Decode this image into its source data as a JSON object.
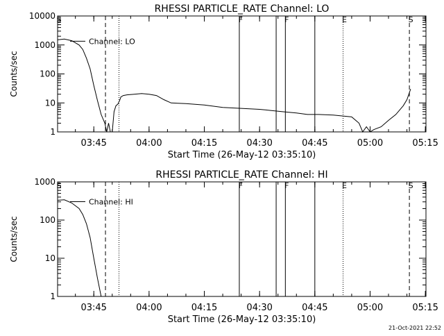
{
  "timestamp": "21-Oct-2021 22:52",
  "colors": {
    "line": "#000000",
    "background": "#ffffff"
  },
  "chart_data": [
    {
      "type": "line",
      "title": "RHESSI PARTICLE_RATE Channel: LO",
      "xlabel": "Start Time (26-May-12 03:35:10)",
      "ylabel": "Counts/sec",
      "y_scale": "log",
      "ylim": [
        1,
        10000
      ],
      "ytick_labels": [
        "1",
        "10",
        "100",
        "1000",
        "10000"
      ],
      "xlim": [
        "03:35:10",
        "05:15:10"
      ],
      "xtick_labels": [
        "03:45",
        "04:00",
        "04:15",
        "04:30",
        "04:45",
        "05:00",
        "05:15"
      ],
      "series": [
        {
          "name": "Channel: LO",
          "x": [
            "03:35:10",
            "03:37:00",
            "03:39:00",
            "03:41:00",
            "03:42:00",
            "03:43:00",
            "03:44:00",
            "03:45:00",
            "03:46:00",
            "03:47:00",
            "03:48:00",
            "03:48:30",
            "03:49:00",
            "03:49:30",
            "03:50:00",
            "03:50:30",
            "03:51:00",
            "03:51:30",
            "03:52:00",
            "03:52:20",
            "03:53:00",
            "03:54:00",
            "03:56:00",
            "03:58:00",
            "04:00:00",
            "04:02:00",
            "04:04:00",
            "04:06:00",
            "04:10:00",
            "04:15:00",
            "04:20:00",
            "04:25:00",
            "04:30:00",
            "04:33:00",
            "04:36:00",
            "04:40:00",
            "04:43:00",
            "04:46:00",
            "04:50:00",
            "04:55:00",
            "04:57:00",
            "04:58:00",
            "04:59:00",
            "05:00:00",
            "05:01:00",
            "05:03:00",
            "05:05:00",
            "05:07:00",
            "05:09:00",
            "05:10:00",
            "05:11:00"
          ],
          "values": [
            1500,
            1600,
            1400,
            1000,
            700,
            350,
            150,
            40,
            12,
            4,
            2,
            1,
            2,
            1,
            1,
            5,
            8,
            9,
            12,
            16,
            18,
            19,
            20,
            21,
            20,
            18,
            13,
            10,
            9.5,
            8.5,
            7,
            6.5,
            6,
            5.5,
            5,
            4.5,
            4,
            4,
            3.8,
            3.3,
            2,
            1,
            1.5,
            1,
            1.2,
            1.5,
            2.5,
            4,
            8,
            13,
            30
          ]
        }
      ],
      "markers": [
        {
          "label": "S",
          "time": "03:35:10",
          "style": "dashed"
        },
        {
          "label": "",
          "time": "03:48:10",
          "style": "dashed"
        },
        {
          "label": "",
          "time": "03:51:50",
          "style": "dotted"
        },
        {
          "label": "F",
          "time": "04:24:30",
          "style": "solid"
        },
        {
          "label": "",
          "time": "04:34:30",
          "style": "solid"
        },
        {
          "label": "F",
          "time": "04:37:00",
          "style": "solid"
        },
        {
          "label": "",
          "time": "04:45:00",
          "style": "solid"
        },
        {
          "label": "E",
          "time": "04:52:40",
          "style": "dotted"
        },
        {
          "label": "S",
          "time": "05:10:40",
          "style": "dashed"
        }
      ]
    },
    {
      "type": "line",
      "title": "RHESSI PARTICLE_RATE Channel: HI",
      "xlabel": "Start Time (26-May-12 03:35:10)",
      "ylabel": "Counts/sec",
      "y_scale": "log",
      "ylim": [
        1,
        1000
      ],
      "ytick_labels": [
        "1",
        "10",
        "100",
        "1000"
      ],
      "xlim": [
        "03:35:10",
        "05:15:10"
      ],
      "xtick_labels": [
        "03:45",
        "04:00",
        "04:15",
        "04:30",
        "04:45",
        "05:00",
        "05:15"
      ],
      "series": [
        {
          "name": "Channel: HI",
          "x": [
            "03:35:10",
            "03:37:00",
            "03:39:00",
            "03:41:00",
            "03:42:00",
            "03:43:00",
            "03:44:00",
            "03:45:00",
            "03:46:00",
            "03:47:00"
          ],
          "values": [
            330,
            340,
            280,
            200,
            140,
            80,
            35,
            10,
            3,
            1
          ]
        }
      ],
      "markers": [
        {
          "label": "S",
          "time": "03:35:10",
          "style": "dashed"
        },
        {
          "label": "",
          "time": "03:48:10",
          "style": "dashed"
        },
        {
          "label": "",
          "time": "03:51:50",
          "style": "dotted"
        },
        {
          "label": "F",
          "time": "04:24:30",
          "style": "solid"
        },
        {
          "label": "",
          "time": "04:34:30",
          "style": "solid"
        },
        {
          "label": "F",
          "time": "04:37:00",
          "style": "solid"
        },
        {
          "label": "",
          "time": "04:45:00",
          "style": "solid"
        },
        {
          "label": "E",
          "time": "04:52:40",
          "style": "dotted"
        },
        {
          "label": "S",
          "time": "05:10:40",
          "style": "dashed"
        }
      ]
    }
  ]
}
